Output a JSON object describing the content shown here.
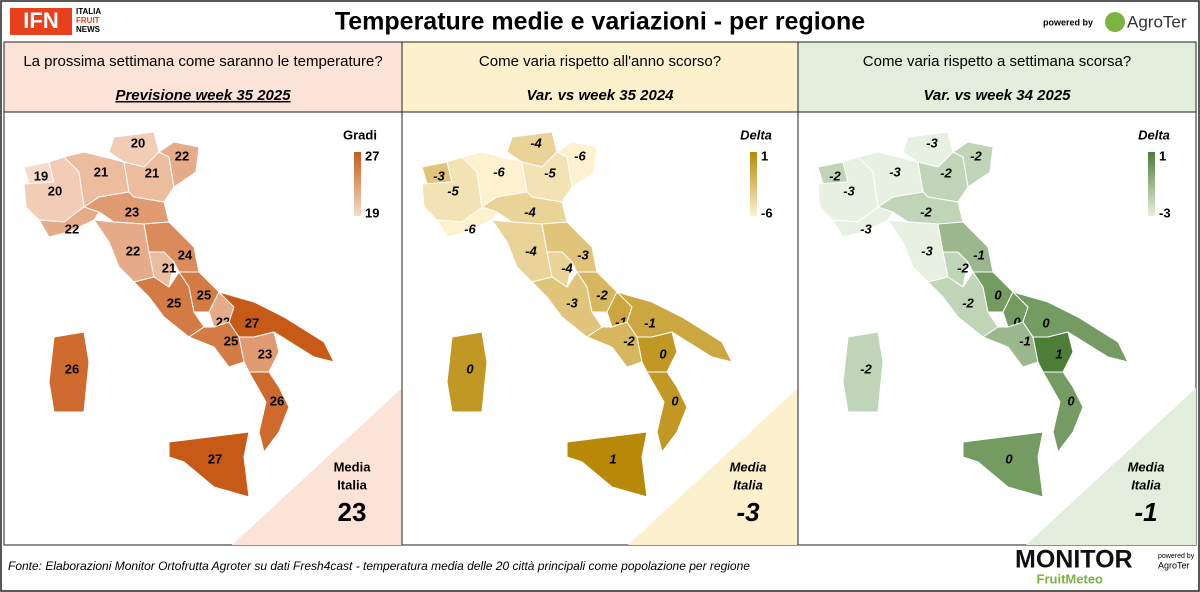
{
  "header": {
    "logo_left": "IFN",
    "logo_left_sub": [
      "ITALIA",
      "FRUIT",
      "NEWS"
    ],
    "title": "Temperature medie e variazioni - per regione",
    "powered_by": "powered by",
    "logo_right": "AgroTer"
  },
  "panels": [
    {
      "question": "La prossima settimana come saranno le temperature?",
      "subtitle": "Previsione week 35 2025",
      "legend_title": "Gradi",
      "legend_max": 27,
      "legend_min": 19,
      "colors": [
        "#f8dccb",
        "#c85a18"
      ],
      "background": "#fbe3d8",
      "media_label": [
        "Media",
        "Italia"
      ],
      "media_value": 23,
      "regions": [
        19,
        20,
        21,
        20,
        21,
        22,
        22,
        23,
        22,
        21,
        24,
        25,
        25,
        22,
        25,
        27,
        23,
        26,
        27,
        26
      ]
    },
    {
      "question": "Come varia rispetto all'anno scorso?",
      "subtitle": "Var. vs week 35 2024",
      "legend_title": "Delta",
      "legend_max": 1,
      "legend_min": -6,
      "colors": [
        "#fdf1d0",
        "#b88908"
      ],
      "background": "#fdf0cc",
      "media_label": [
        "Media",
        "Italia"
      ],
      "media_value": -3,
      "regions": [
        -3,
        -5,
        -6,
        -4,
        -5,
        -6,
        -6,
        -4,
        -4,
        -4,
        -3,
        -3,
        -2,
        -1,
        -2,
        -1,
        0,
        0,
        1,
        0
      ]
    },
    {
      "question": "Come varia rispetto a settimana scorsa?",
      "subtitle": "Var. vs week 34 2025",
      "legend_title": "Delta",
      "legend_max": 1,
      "legend_min": -3,
      "colors": [
        "#e7f0e1",
        "#4c7e38"
      ],
      "background": "#e2eedb",
      "media_label": [
        "Media",
        "Italia"
      ],
      "media_value": -1,
      "regions": [
        -2,
        -3,
        -3,
        -3,
        -2,
        -2,
        -3,
        -2,
        -3,
        -2,
        -1,
        -2,
        0,
        0,
        -1,
        0,
        1,
        0,
        0,
        -2
      ]
    }
  ],
  "footer": {
    "source": "Fonte: Elaborazioni Monitor Ortofrutta Agroter su dati Fresh4cast - temperatura media delle 20 città principali come popolazione per regione",
    "logo": "MONITOR",
    "logo_sub": "FruitMeteo",
    "logo_side": [
      "powered by",
      "AgroTer"
    ]
  }
}
